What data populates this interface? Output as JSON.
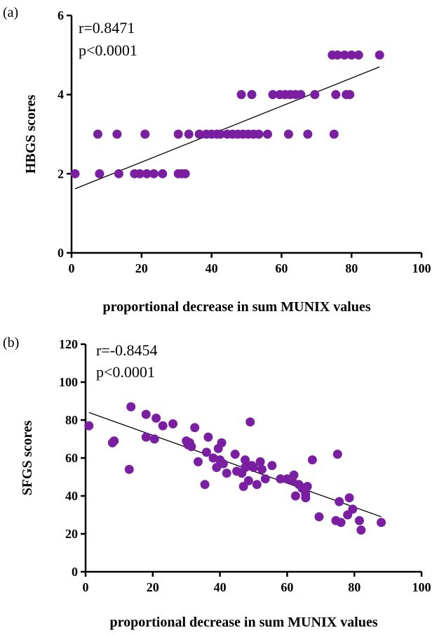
{
  "chart_data": [
    {
      "type": "scatter",
      "panel_label": "(a)",
      "xlabel": "proportional decrease in sum MUNIX values",
      "ylabel": "HBGS scores",
      "xlim": [
        0,
        100
      ],
      "ylim": [
        0,
        6
      ],
      "xticks": [
        "0",
        "20",
        "40",
        "60",
        "80",
        "100"
      ],
      "yticks": [
        "0",
        "2",
        "4",
        "6"
      ],
      "annotation": [
        "r=0.8471",
        "p<0.0001"
      ],
      "marker_color": "#7b1fa2",
      "trendline": {
        "x": [
          1,
          88
        ],
        "y": [
          1.62,
          4.7
        ]
      },
      "grid": false,
      "points": [
        {
          "x": 1,
          "y": 2
        },
        {
          "x": 8,
          "y": 2
        },
        {
          "x": 13.5,
          "y": 2
        },
        {
          "x": 18,
          "y": 2
        },
        {
          "x": 19.5,
          "y": 2
        },
        {
          "x": 21.5,
          "y": 2
        },
        {
          "x": 23.5,
          "y": 2
        },
        {
          "x": 26,
          "y": 2
        },
        {
          "x": 30.5,
          "y": 2
        },
        {
          "x": 31.5,
          "y": 2
        },
        {
          "x": 32.5,
          "y": 2
        },
        {
          "x": 7.5,
          "y": 3
        },
        {
          "x": 13,
          "y": 3
        },
        {
          "x": 21,
          "y": 3
        },
        {
          "x": 30.5,
          "y": 3
        },
        {
          "x": 33.5,
          "y": 3
        },
        {
          "x": 36.5,
          "y": 3
        },
        {
          "x": 38.5,
          "y": 3
        },
        {
          "x": 40,
          "y": 3
        },
        {
          "x": 41.5,
          "y": 3
        },
        {
          "x": 42.5,
          "y": 3
        },
        {
          "x": 44.5,
          "y": 3
        },
        {
          "x": 46,
          "y": 3
        },
        {
          "x": 47.5,
          "y": 3
        },
        {
          "x": 49,
          "y": 3
        },
        {
          "x": 50.5,
          "y": 3
        },
        {
          "x": 52,
          "y": 3
        },
        {
          "x": 53.5,
          "y": 3
        },
        {
          "x": 56,
          "y": 3
        },
        {
          "x": 62,
          "y": 3
        },
        {
          "x": 67.5,
          "y": 3
        },
        {
          "x": 75,
          "y": 3
        },
        {
          "x": 48.5,
          "y": 4
        },
        {
          "x": 51.5,
          "y": 4
        },
        {
          "x": 57.5,
          "y": 4
        },
        {
          "x": 59.5,
          "y": 4
        },
        {
          "x": 61,
          "y": 4
        },
        {
          "x": 62.5,
          "y": 4
        },
        {
          "x": 64,
          "y": 4
        },
        {
          "x": 65.5,
          "y": 4
        },
        {
          "x": 69.5,
          "y": 4
        },
        {
          "x": 75.5,
          "y": 4
        },
        {
          "x": 78.5,
          "y": 4
        },
        {
          "x": 79.5,
          "y": 4
        },
        {
          "x": 74.5,
          "y": 5
        },
        {
          "x": 76,
          "y": 5
        },
        {
          "x": 78,
          "y": 5
        },
        {
          "x": 80,
          "y": 5
        },
        {
          "x": 82,
          "y": 5
        },
        {
          "x": 88,
          "y": 5
        }
      ]
    },
    {
      "type": "scatter",
      "panel_label": "(b)",
      "xlabel": "proportional decrease in sum MUNIX values",
      "ylabel": "SFGS scores",
      "xlim": [
        0,
        100
      ],
      "ylim": [
        0,
        120
      ],
      "xticks": [
        "0",
        "20",
        "40",
        "60",
        "80",
        "100"
      ],
      "yticks": [
        "0",
        "20",
        "40",
        "60",
        "80",
        "100",
        "120"
      ],
      "annotation": [
        "r=-0.8454",
        "p<0.0001"
      ],
      "marker_color": "#7b1fa2",
      "trendline": {
        "x": [
          1,
          88
        ],
        "y": [
          84,
          29
        ]
      },
      "grid": false,
      "points": [
        {
          "x": 1,
          "y": 77
        },
        {
          "x": 8,
          "y": 68
        },
        {
          "x": 8.5,
          "y": 69
        },
        {
          "x": 13,
          "y": 54
        },
        {
          "x": 13.5,
          "y": 87
        },
        {
          "x": 18,
          "y": 83
        },
        {
          "x": 18,
          "y": 71
        },
        {
          "x": 20.5,
          "y": 70
        },
        {
          "x": 21,
          "y": 81
        },
        {
          "x": 23,
          "y": 77
        },
        {
          "x": 26,
          "y": 78
        },
        {
          "x": 30,
          "y": 69
        },
        {
          "x": 30.5,
          "y": 67
        },
        {
          "x": 31,
          "y": 68
        },
        {
          "x": 31.5,
          "y": 66
        },
        {
          "x": 32.5,
          "y": 76
        },
        {
          "x": 33.5,
          "y": 58
        },
        {
          "x": 35.5,
          "y": 46
        },
        {
          "x": 36,
          "y": 63
        },
        {
          "x": 36.5,
          "y": 71
        },
        {
          "x": 38,
          "y": 60
        },
        {
          "x": 39,
          "y": 55
        },
        {
          "x": 39.5,
          "y": 65
        },
        {
          "x": 40,
          "y": 59
        },
        {
          "x": 40.5,
          "y": 68
        },
        {
          "x": 41,
          "y": 57
        },
        {
          "x": 42,
          "y": 52
        },
        {
          "x": 44.5,
          "y": 62
        },
        {
          "x": 45,
          "y": 53
        },
        {
          "x": 46.5,
          "y": 52
        },
        {
          "x": 47,
          "y": 45
        },
        {
          "x": 47.5,
          "y": 59
        },
        {
          "x": 47.5,
          "y": 55
        },
        {
          "x": 48.5,
          "y": 48
        },
        {
          "x": 49,
          "y": 79
        },
        {
          "x": 49.5,
          "y": 56
        },
        {
          "x": 50,
          "y": 55
        },
        {
          "x": 51,
          "y": 46
        },
        {
          "x": 52,
          "y": 58
        },
        {
          "x": 52.5,
          "y": 54
        },
        {
          "x": 53.5,
          "y": 49
        },
        {
          "x": 55.5,
          "y": 56
        },
        {
          "x": 58,
          "y": 49
        },
        {
          "x": 60,
          "y": 49
        },
        {
          "x": 61.5,
          "y": 48
        },
        {
          "x": 62,
          "y": 51
        },
        {
          "x": 62.5,
          "y": 40
        },
        {
          "x": 63.5,
          "y": 46
        },
        {
          "x": 64.5,
          "y": 44
        },
        {
          "x": 65.5,
          "y": 39
        },
        {
          "x": 65.5,
          "y": 41
        },
        {
          "x": 66,
          "y": 45
        },
        {
          "x": 67.5,
          "y": 59
        },
        {
          "x": 69.5,
          "y": 29
        },
        {
          "x": 74.5,
          "y": 27
        },
        {
          "x": 75,
          "y": 62
        },
        {
          "x": 75.5,
          "y": 37
        },
        {
          "x": 76,
          "y": 26
        },
        {
          "x": 78,
          "y": 30
        },
        {
          "x": 78.5,
          "y": 39
        },
        {
          "x": 79.5,
          "y": 33
        },
        {
          "x": 81.5,
          "y": 27
        },
        {
          "x": 82,
          "y": 22
        },
        {
          "x": 88,
          "y": 26
        }
      ]
    }
  ]
}
